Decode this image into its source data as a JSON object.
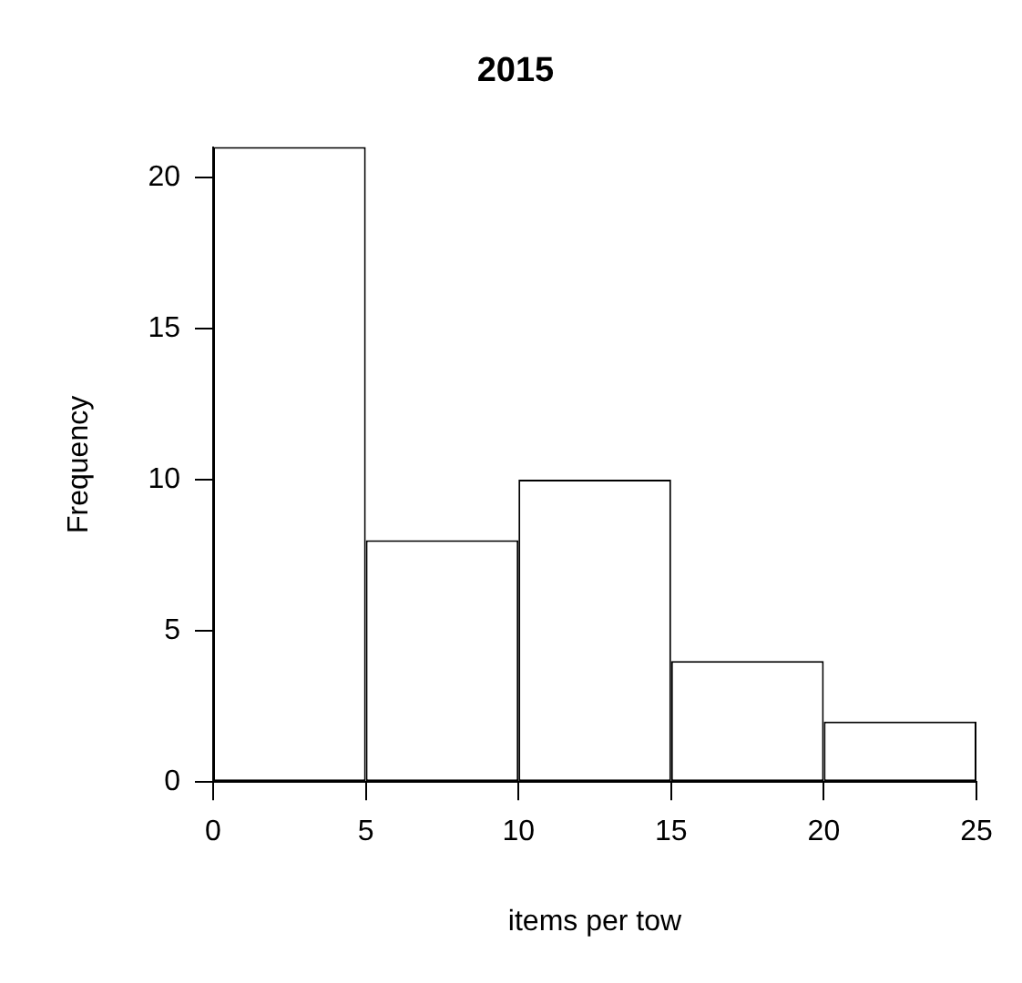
{
  "chart_data": {
    "type": "histogram",
    "title": "2015",
    "xlabel": "items per tow",
    "ylabel": "Frequency",
    "bins": [
      0,
      5,
      10,
      15,
      20,
      25
    ],
    "values": [
      21,
      8,
      10,
      4,
      2
    ],
    "color": "#ffffff",
    "xlim": [
      0,
      25
    ],
    "xticks": [
      0,
      5,
      10,
      15,
      20,
      25
    ],
    "ylim": [
      0,
      21
    ],
    "yticks": [
      0,
      5,
      10,
      15,
      20
    ],
    "grid": false,
    "legend": false
  }
}
